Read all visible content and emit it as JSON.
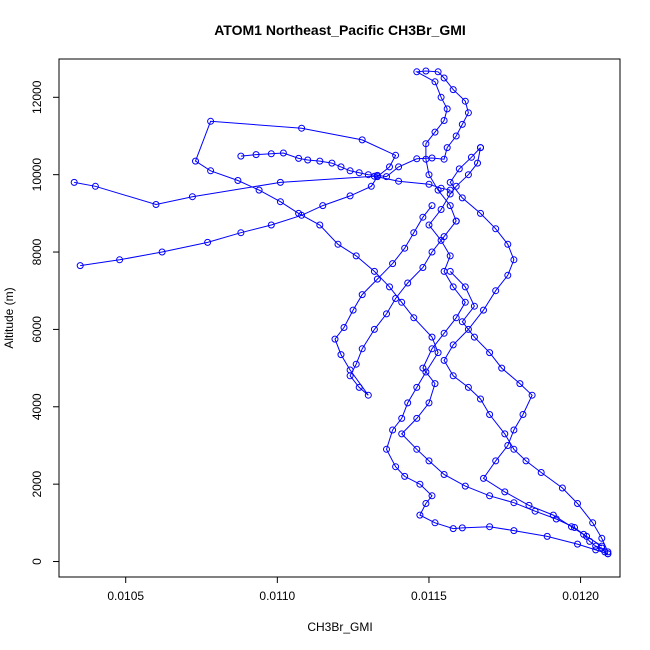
{
  "chart_data": {
    "type": "line",
    "title": "ATOM1 Northeast_Pacific CH3Br_GMI",
    "xlabel": "CH3Br_GMI",
    "ylabel": "Altitude (m)",
    "xlim": [
      0.01028,
      0.01213
    ],
    "ylim": [
      -400,
      12990
    ],
    "x_ticks": [
      0.0105,
      0.011,
      0.0115,
      0.012
    ],
    "x_tick_labels": [
      "0.0105",
      "0.0110",
      "0.0115",
      "0.0120"
    ],
    "y_ticks": [
      0,
      2000,
      4000,
      6000,
      8000,
      10000,
      12000
    ],
    "y_tick_labels": [
      "0",
      "2000",
      "4000",
      "6000",
      "8000",
      "10000",
      "12000"
    ],
    "grid": false,
    "legend": "none",
    "series_color": "#0000ff",
    "marker": "open-circle",
    "series": [
      {
        "points": [
          [
            0.01209,
            200
          ],
          [
            0.01208,
            250
          ],
          [
            0.01207,
            350
          ],
          [
            0.01205,
            400
          ],
          [
            0.01203,
            520
          ],
          [
            0.01201,
            700
          ],
          [
            0.01198,
            880
          ],
          [
            0.01192,
            1100
          ],
          [
            0.01185,
            1300
          ],
          [
            0.01178,
            1520
          ],
          [
            0.0117,
            1700
          ],
          [
            0.01162,
            1950
          ],
          [
            0.01155,
            2250
          ],
          [
            0.0115,
            2600
          ],
          [
            0.01146,
            2900
          ],
          [
            0.01141,
            3300
          ],
          [
            0.01146,
            3700
          ],
          [
            0.0115,
            4100
          ],
          [
            0.01152,
            4600
          ],
          [
            0.01148,
            5000
          ],
          [
            0.01151,
            5500
          ],
          [
            0.01155,
            5900
          ],
          [
            0.01159,
            6300
          ],
          [
            0.01162,
            6700
          ],
          [
            0.01158,
            7100
          ],
          [
            0.01155,
            7500
          ],
          [
            0.01157,
            7900
          ],
          [
            0.01154,
            8300
          ],
          [
            0.0115,
            8700
          ],
          [
            0.01154,
            9100
          ],
          [
            0.01157,
            9500
          ],
          [
            0.01159,
            9700
          ],
          [
            0.01163,
            10000
          ],
          [
            0.01166,
            10300
          ],
          [
            0.01167,
            10700
          ]
        ]
      },
      {
        "points": [
          [
            0.01167,
            10700
          ],
          [
            0.01164,
            10450
          ],
          [
            0.0116,
            10150
          ],
          [
            0.01157,
            9800
          ],
          [
            0.01161,
            9400
          ],
          [
            0.01167,
            9000
          ],
          [
            0.01172,
            8600
          ],
          [
            0.01176,
            8200
          ],
          [
            0.01178,
            7800
          ],
          [
            0.01176,
            7400
          ],
          [
            0.01172,
            7000
          ],
          [
            0.01168,
            6500
          ],
          [
            0.01163,
            6000
          ],
          [
            0.01158,
            5600
          ],
          [
            0.01155,
            5200
          ],
          [
            0.01158,
            4800
          ],
          [
            0.01163,
            4500
          ],
          [
            0.01167,
            4200
          ],
          [
            0.0117,
            3800
          ],
          [
            0.01175,
            3300
          ],
          [
            0.01178,
            2900
          ],
          [
            0.01182,
            2600
          ],
          [
            0.01187,
            2300
          ],
          [
            0.01194,
            1900
          ],
          [
            0.01199,
            1500
          ],
          [
            0.01204,
            1000
          ],
          [
            0.01207,
            600
          ],
          [
            0.01209,
            250
          ]
        ]
      },
      {
        "points": [
          [
            0.01209,
            200
          ],
          [
            0.01205,
            300
          ],
          [
            0.01199,
            450
          ],
          [
            0.01189,
            650
          ],
          [
            0.01178,
            800
          ],
          [
            0.0117,
            900
          ],
          [
            0.01161,
            870
          ],
          [
            0.01158,
            850
          ],
          [
            0.01152,
            1000
          ],
          [
            0.01147,
            1200
          ],
          [
            0.01149,
            1500
          ],
          [
            0.01151,
            1700
          ],
          [
            0.01147,
            2000
          ],
          [
            0.01142,
            2200
          ],
          [
            0.01139,
            2450
          ],
          [
            0.01136,
            2900
          ],
          [
            0.01138,
            3400
          ],
          [
            0.01141,
            3700
          ],
          [
            0.01143,
            4100
          ],
          [
            0.01146,
            4500
          ],
          [
            0.01149,
            4900
          ],
          [
            0.01153,
            5400
          ],
          [
            0.01151,
            5800
          ],
          [
            0.01145,
            6300
          ],
          [
            0.01141,
            6700
          ],
          [
            0.01137,
            7100
          ],
          [
            0.01132,
            7500
          ],
          [
            0.01126,
            7900
          ],
          [
            0.0112,
            8200
          ],
          [
            0.01114,
            8700
          ],
          [
            0.01107,
            9000
          ],
          [
            0.01101,
            9300
          ],
          [
            0.01094,
            9600
          ],
          [
            0.01087,
            9850
          ],
          [
            0.01078,
            10100
          ],
          [
            0.01073,
            10350
          ],
          [
            0.01078,
            11380
          ],
          [
            0.01108,
            11200
          ],
          [
            0.01128,
            10900
          ],
          [
            0.01139,
            10500
          ],
          [
            0.01137,
            10200
          ],
          [
            0.01133,
            9950
          ],
          [
            0.01131,
            9700
          ],
          [
            0.01124,
            9450
          ],
          [
            0.01115,
            9200
          ],
          [
            0.01108,
            8950
          ],
          [
            0.01098,
            8700
          ],
          [
            0.01088,
            8500
          ],
          [
            0.01077,
            8250
          ],
          [
            0.01062,
            8000
          ],
          [
            0.01048,
            7800
          ],
          [
            0.01035,
            7650
          ]
        ]
      },
      {
        "points": [
          [
            0.01033,
            9800
          ],
          [
            0.0104,
            9700
          ],
          [
            0.0106,
            9230
          ],
          [
            0.01072,
            9430
          ],
          [
            0.01101,
            9800
          ],
          [
            0.01132,
            9960
          ],
          [
            0.0114,
            9830
          ],
          [
            0.0115,
            9750
          ],
          [
            0.01154,
            9650
          ],
          [
            0.01157,
            9600
          ]
        ]
      },
      {
        "points": [
          [
            0.01088,
            10480
          ],
          [
            0.01093,
            10520
          ],
          [
            0.01098,
            10540
          ],
          [
            0.01102,
            10560
          ],
          [
            0.01107,
            10420
          ],
          [
            0.0111,
            10380
          ],
          [
            0.01114,
            10350
          ],
          [
            0.01118,
            10300
          ],
          [
            0.01121,
            10200
          ],
          [
            0.01124,
            10100
          ],
          [
            0.01127,
            10050
          ],
          [
            0.0113,
            10000
          ],
          [
            0.01133,
            9980
          ],
          [
            0.01136,
            9950
          ],
          [
            0.0114,
            10200
          ],
          [
            0.01146,
            10410
          ],
          [
            0.01151,
            10430
          ],
          [
            0.01155,
            10400
          ],
          [
            0.01156,
            10700
          ],
          [
            0.01159,
            11000
          ],
          [
            0.01161,
            11300
          ],
          [
            0.01163,
            11600
          ],
          [
            0.01162,
            11900
          ],
          [
            0.01158,
            12200
          ],
          [
            0.01155,
            12500
          ],
          [
            0.01153,
            12660
          ],
          [
            0.01149,
            12680
          ],
          [
            0.01146,
            12660
          ],
          [
            0.01152,
            12400
          ],
          [
            0.01154,
            12000
          ],
          [
            0.01156,
            11700
          ],
          [
            0.01155,
            11400
          ],
          [
            0.01152,
            11100
          ],
          [
            0.01149,
            10800
          ],
          [
            0.01149,
            10400
          ],
          [
            0.0115,
            10000
          ],
          [
            0.01153,
            9600
          ],
          [
            0.01157,
            9200
          ],
          [
            0.01159,
            8800
          ]
        ]
      },
      {
        "points": [
          [
            0.01159,
            8800
          ],
          [
            0.01155,
            8400
          ],
          [
            0.01151,
            8000
          ],
          [
            0.01148,
            7600
          ],
          [
            0.01143,
            7200
          ],
          [
            0.01139,
            6800
          ],
          [
            0.01136,
            6400
          ],
          [
            0.01132,
            6000
          ],
          [
            0.01128,
            5500
          ],
          [
            0.01126,
            5100
          ],
          [
            0.01124,
            4800
          ],
          [
            0.01127,
            4500
          ],
          [
            0.0113,
            4300
          ],
          [
            0.01124,
            4950
          ],
          [
            0.01121,
            5350
          ],
          [
            0.01119,
            5750
          ],
          [
            0.01122,
            6050
          ],
          [
            0.01125,
            6500
          ],
          [
            0.01128,
            6900
          ],
          [
            0.01133,
            7300
          ],
          [
            0.01138,
            7700
          ],
          [
            0.01142,
            8100
          ],
          [
            0.01145,
            8500
          ],
          [
            0.01148,
            8900
          ],
          [
            0.01151,
            9200
          ]
        ]
      },
      {
        "points": [
          [
            0.01157,
            7500
          ],
          [
            0.01162,
            7100
          ],
          [
            0.01165,
            6600
          ],
          [
            0.01161,
            6200
          ],
          [
            0.01165,
            5800
          ],
          [
            0.0117,
            5400
          ],
          [
            0.01174,
            5000
          ],
          [
            0.0118,
            4600
          ],
          [
            0.01184,
            4300
          ],
          [
            0.01181,
            3800
          ],
          [
            0.01178,
            3400
          ],
          [
            0.01176,
            3000
          ],
          [
            0.01172,
            2600
          ],
          [
            0.01168,
            2150
          ],
          [
            0.01175,
            1800
          ],
          [
            0.01183,
            1450
          ],
          [
            0.01191,
            1200
          ],
          [
            0.01197,
            900
          ],
          [
            0.01202,
            650
          ],
          [
            0.01207,
            400
          ]
        ]
      }
    ]
  }
}
